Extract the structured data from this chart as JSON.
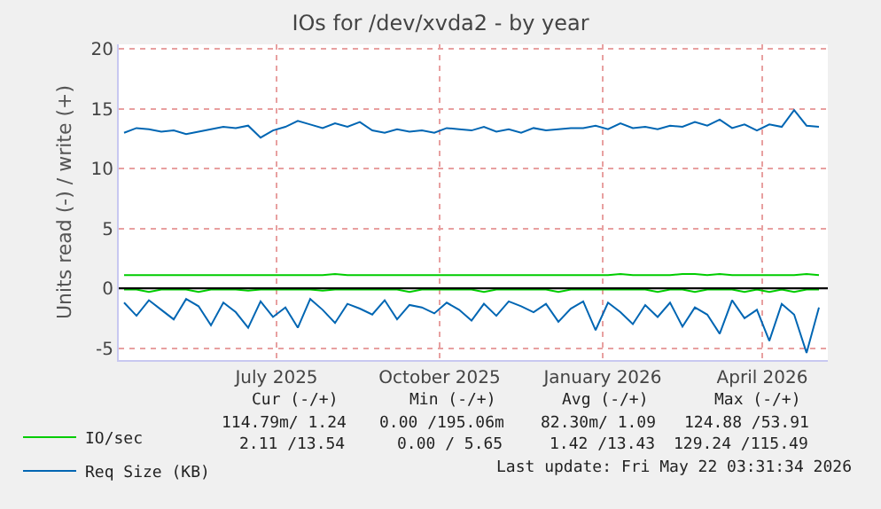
{
  "chart_data": {
    "type": "line",
    "title": "IOs for /dev/xvda2 - by year",
    "ylabel": "Units read (-) / write (+)",
    "x": [
      "2025-04-20",
      "2025-04-27",
      "2025-05-04",
      "2025-05-11",
      "2025-05-18",
      "2025-05-25",
      "2025-06-01",
      "2025-06-08",
      "2025-06-15",
      "2025-06-22",
      "2025-06-29",
      "2025-07-06",
      "2025-07-13",
      "2025-07-20",
      "2025-07-27",
      "2025-08-03",
      "2025-08-10",
      "2025-08-17",
      "2025-08-24",
      "2025-08-31",
      "2025-09-07",
      "2025-09-14",
      "2025-09-21",
      "2025-09-28",
      "2025-10-05",
      "2025-10-12",
      "2025-10-19",
      "2025-10-26",
      "2025-11-02",
      "2025-11-09",
      "2025-11-16",
      "2025-11-23",
      "2025-11-30",
      "2025-12-07",
      "2025-12-14",
      "2025-12-21",
      "2025-12-28",
      "2026-01-04",
      "2026-01-11",
      "2026-01-18",
      "2026-01-25",
      "2026-02-01",
      "2026-02-08",
      "2026-02-15",
      "2026-02-22",
      "2026-03-01",
      "2026-03-08",
      "2026-03-15",
      "2026-03-22",
      "2026-03-29",
      "2026-04-05",
      "2026-04-12",
      "2026-04-19",
      "2026-04-26",
      "2026-05-03",
      "2026-05-10",
      "2026-05-17"
    ],
    "series": [
      {
        "name": "IO/sec",
        "color": "#00cc00",
        "values": [
          1.1,
          1.1,
          1.1,
          1.1,
          1.1,
          1.1,
          1.1,
          1.1,
          1.1,
          1.1,
          1.1,
          1.1,
          1.1,
          1.1,
          1.1,
          1.1,
          1.1,
          1.2,
          1.1,
          1.1,
          1.1,
          1.1,
          1.1,
          1.1,
          1.1,
          1.1,
          1.1,
          1.1,
          1.1,
          1.1,
          1.1,
          1.1,
          1.1,
          1.1,
          1.1,
          1.1,
          1.1,
          1.1,
          1.1,
          1.1,
          1.2,
          1.1,
          1.1,
          1.1,
          1.1,
          1.2,
          1.2,
          1.1,
          1.2,
          1.1,
          1.1,
          1.1,
          1.1,
          1.1,
          1.1,
          1.2,
          1.1
        ]
      },
      {
        "color": "#00cc00",
        "values": [
          -0.1,
          -0.1,
          -0.3,
          -0.1,
          -0.1,
          -0.1,
          -0.3,
          -0.1,
          -0.1,
          -0.1,
          -0.2,
          -0.1,
          -0.1,
          -0.1,
          -0.1,
          -0.1,
          -0.2,
          -0.1,
          -0.1,
          -0.1,
          -0.1,
          -0.1,
          -0.1,
          -0.3,
          -0.1,
          -0.1,
          -0.1,
          -0.1,
          -0.1,
          -0.3,
          -0.1,
          -0.1,
          -0.1,
          -0.1,
          -0.1,
          -0.3,
          -0.1,
          -0.1,
          -0.1,
          -0.1,
          -0.1,
          -0.1,
          -0.1,
          -0.3,
          -0.1,
          -0.1,
          -0.3,
          -0.1,
          -0.1,
          -0.1,
          -0.3,
          -0.1,
          -0.3,
          -0.1,
          -0.3,
          -0.1,
          -0.1
        ]
      },
      {
        "name": "Req Size (KB)",
        "color": "#0066b3",
        "values": [
          13.0,
          13.4,
          13.3,
          13.1,
          13.2,
          12.9,
          13.1,
          13.3,
          13.5,
          13.4,
          13.6,
          12.6,
          13.2,
          13.5,
          14.0,
          13.7,
          13.4,
          13.8,
          13.5,
          13.9,
          13.2,
          13.0,
          13.3,
          13.1,
          13.2,
          13.0,
          13.4,
          13.3,
          13.2,
          13.5,
          13.1,
          13.3,
          13.0,
          13.4,
          13.2,
          13.3,
          13.4,
          13.4,
          13.6,
          13.3,
          13.8,
          13.4,
          13.5,
          13.3,
          13.6,
          13.5,
          13.9,
          13.6,
          14.1,
          13.4,
          13.7,
          13.2,
          13.7,
          13.5,
          14.9,
          13.6,
          13.5
        ]
      },
      {
        "color": "#0066b3",
        "values": [
          -1.2,
          -2.3,
          -1.0,
          -1.8,
          -2.6,
          -0.9,
          -1.5,
          -3.1,
          -1.2,
          -2.0,
          -3.3,
          -1.1,
          -2.4,
          -1.6,
          -3.3,
          -0.9,
          -1.8,
          -2.9,
          -1.3,
          -1.7,
          -2.2,
          -1.0,
          -2.6,
          -1.4,
          -1.6,
          -2.1,
          -1.2,
          -1.8,
          -2.7,
          -1.3,
          -2.3,
          -1.1,
          -1.5,
          -2.0,
          -1.3,
          -2.8,
          -1.7,
          -1.1,
          -3.5,
          -1.2,
          -2.0,
          -3.0,
          -1.4,
          -2.4,
          -1.2,
          -3.2,
          -1.6,
          -2.2,
          -3.8,
          -1.0,
          -2.5,
          -1.8,
          -4.4,
          -1.3,
          -2.2,
          -5.4,
          -1.6
        ]
      }
    ],
    "xlim": [
      "2025-04-17",
      "2026-05-22"
    ],
    "xticks": [
      {
        "value": "2025-07-15",
        "label": "July 2025"
      },
      {
        "value": "2025-10-15",
        "label": "October 2025"
      },
      {
        "value": "2026-01-15",
        "label": "January 2026"
      },
      {
        "value": "2026-04-15",
        "label": "April 2026"
      }
    ],
    "ylim": [
      -6,
      20.4
    ],
    "yticks": [
      -5,
      0,
      5,
      10,
      15,
      20
    ],
    "ref_lines": [
      {
        "axis": "y",
        "value": 0,
        "color": "#000000"
      }
    ],
    "grid": true,
    "legend": "bottom left",
    "marker": "none",
    "line_style": "solid",
    "annotations": [
      "Cur (-/+)",
      "Min (-/+)",
      "Avg (-/+)",
      "Max (-/+)",
      "114.79m/ 1.24",
      "0.00 /195.06m",
      "82.30m/ 1.09",
      "124.88 /53.91",
      "2.11 /13.54",
      "0.00 / 5.65",
      "1.42 /13.43",
      "129.24 /115.49",
      "Last update: Fri May 22 03:31:34 2026"
    ]
  }
}
